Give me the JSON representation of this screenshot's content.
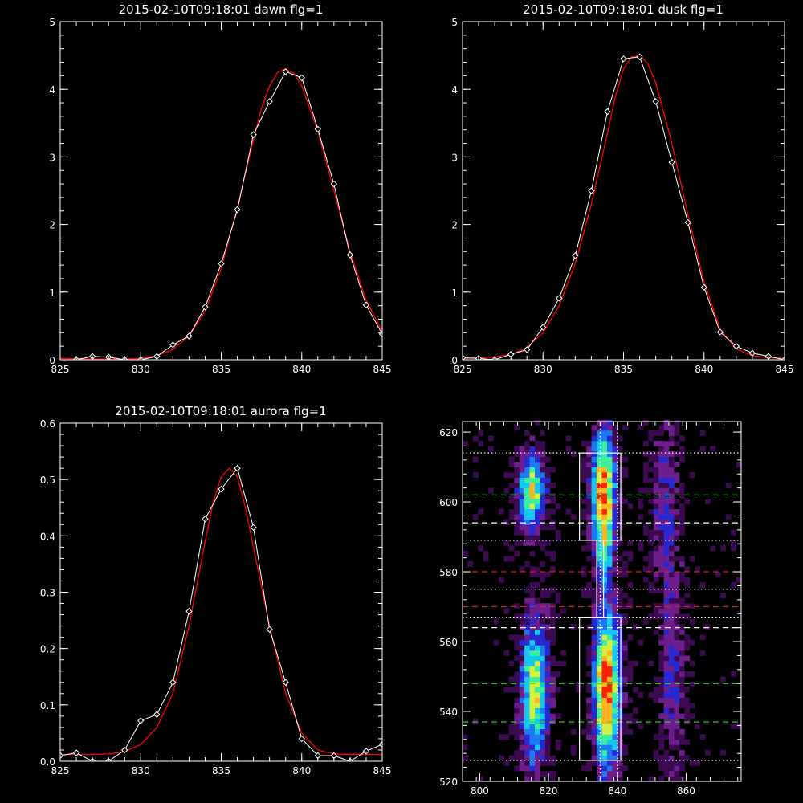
{
  "colors": {
    "background": "#000000",
    "axes": "#ffffff",
    "data": "#ffffff",
    "fit": "#ff0000"
  },
  "chart_data": [
    {
      "id": "dawn",
      "type": "line",
      "title": "2015-02-10T09:18:01 dawn flg=1",
      "xlim": [
        825,
        845
      ],
      "ylim": [
        0,
        5
      ],
      "xticks": [
        825,
        830,
        835,
        840,
        845
      ],
      "yticks": [
        0,
        1,
        2,
        3,
        4,
        5
      ],
      "series": [
        {
          "role": "data",
          "marker": "diamond",
          "x": [
            826,
            827,
            828,
            829,
            830,
            831,
            832,
            833,
            834,
            835,
            836,
            837,
            838,
            839,
            840,
            841,
            842,
            843,
            844,
            845
          ],
          "y": [
            0.0,
            0.05,
            0.04,
            0.0,
            0.0,
            0.05,
            0.22,
            0.35,
            0.78,
            1.42,
            2.22,
            3.33,
            3.82,
            4.26,
            4.17,
            3.41,
            2.6,
            1.55,
            0.81,
            0.38
          ]
        },
        {
          "role": "fit",
          "x": [
            825,
            827,
            829,
            830,
            831,
            832,
            833,
            834,
            835,
            836,
            837,
            837.5,
            838,
            838.5,
            839,
            839.5,
            840,
            841,
            842,
            843,
            844,
            845
          ],
          "y": [
            0.02,
            0.01,
            0.01,
            0.02,
            0.06,
            0.15,
            0.35,
            0.72,
            1.35,
            2.25,
            3.25,
            3.72,
            4.05,
            4.25,
            4.3,
            4.24,
            4.05,
            3.38,
            2.5,
            1.6,
            0.88,
            0.42
          ]
        }
      ]
    },
    {
      "id": "dusk",
      "type": "line",
      "title": "2015-02-10T09:18:01 dusk flg=1",
      "xlim": [
        825,
        845
      ],
      "ylim": [
        0,
        5
      ],
      "xticks": [
        825,
        830,
        835,
        840,
        845
      ],
      "yticks": [
        0,
        1,
        2,
        3,
        4,
        5
      ],
      "series": [
        {
          "role": "data",
          "marker": "diamond",
          "x": [
            825,
            826,
            827,
            828,
            829,
            830,
            831,
            832,
            833,
            834,
            835,
            836,
            837,
            838,
            839,
            840,
            841,
            842,
            843,
            844,
            845
          ],
          "y": [
            0.03,
            0.02,
            0.0,
            0.08,
            0.15,
            0.48,
            0.91,
            1.54,
            2.5,
            3.67,
            4.45,
            4.48,
            3.82,
            2.92,
            2.03,
            1.07,
            0.41,
            0.2,
            0.1,
            0.05,
            0.0
          ]
        },
        {
          "role": "fit",
          "x": [
            825,
            827,
            828,
            829,
            830,
            831,
            832,
            833,
            834,
            834.5,
            835,
            835.5,
            836,
            836.5,
            837,
            838,
            839,
            840,
            841,
            842,
            843,
            844,
            845
          ],
          "y": [
            0.02,
            0.04,
            0.08,
            0.18,
            0.4,
            0.8,
            1.42,
            2.3,
            3.35,
            3.9,
            4.3,
            4.48,
            4.5,
            4.38,
            4.1,
            3.2,
            2.15,
            1.15,
            0.45,
            0.16,
            0.06,
            0.03,
            0.02
          ]
        }
      ]
    },
    {
      "id": "aurora",
      "type": "line",
      "title": "2015-02-10T09:18:01 aurora flg=1",
      "xlim": [
        825,
        845
      ],
      "ylim": [
        0,
        0.6
      ],
      "xticks": [
        825,
        830,
        835,
        840,
        845
      ],
      "yticks": [
        0.0,
        0.1,
        0.2,
        0.3,
        0.4,
        0.5,
        0.6
      ],
      "series": [
        {
          "role": "data",
          "marker": "diamond",
          "x": [
            825,
            826,
            827,
            828,
            829,
            830,
            831,
            832,
            833,
            834,
            835,
            836,
            837,
            838,
            839,
            840,
            841,
            842,
            843,
            844,
            845
          ],
          "y": [
            0.01,
            0.015,
            0.0,
            0.0,
            0.02,
            0.072,
            0.083,
            0.14,
            0.266,
            0.43,
            0.483,
            0.52,
            0.415,
            0.234,
            0.14,
            0.04,
            0.01,
            0.01,
            0.0,
            0.018,
            0.03
          ]
        },
        {
          "role": "fit",
          "x": [
            825,
            827,
            828,
            829,
            830,
            831,
            832,
            833,
            834,
            834.5,
            835,
            835.5,
            836,
            836.5,
            837,
            838,
            839,
            840,
            841,
            842,
            843,
            845
          ],
          "y": [
            0.012,
            0.012,
            0.013,
            0.017,
            0.03,
            0.06,
            0.12,
            0.24,
            0.39,
            0.46,
            0.505,
            0.52,
            0.505,
            0.45,
            0.38,
            0.24,
            0.12,
            0.05,
            0.02,
            0.013,
            0.012,
            0.012
          ]
        }
      ]
    },
    {
      "id": "image",
      "type": "heatmap",
      "xlim": [
        795,
        876
      ],
      "ylim": [
        520,
        623
      ],
      "xticks": [
        800,
        820,
        840,
        860
      ],
      "yticks": [
        520,
        540,
        560,
        580,
        600,
        620
      ],
      "colormap": [
        "#000000",
        "#3c0a50",
        "#6e1e8c",
        "#2828d2",
        "#1e78f0",
        "#14c8f0",
        "#3cf09b",
        "#d2f03c",
        "#ffb41e",
        "#ff1e00"
      ],
      "blobs": [
        {
          "xc": 815,
          "xw": 3,
          "yc": 603,
          "yw": 6,
          "amp": 0.75
        },
        {
          "xc": 836,
          "xw": 2.6,
          "yc": 604,
          "yw": 9,
          "amp": 0.95
        },
        {
          "xc": 816,
          "xw": 3,
          "yc": 546,
          "yw": 12,
          "amp": 0.75
        },
        {
          "xc": 837,
          "xw": 2.8,
          "yc": 547,
          "yw": 13,
          "amp": 1.0
        },
        {
          "xc": 854,
          "xw": 3,
          "yc": 600,
          "yw": 14,
          "amp": 0.3
        },
        {
          "xc": 856,
          "xw": 3,
          "yc": 548,
          "yw": 16,
          "amp": 0.3
        },
        {
          "xc": 836,
          "xw": 1.5,
          "yc": 585,
          "yw": 5,
          "amp": 0.4
        }
      ],
      "boxes": [
        {
          "x": [
            829,
            841
          ],
          "y": [
            589,
            614
          ]
        },
        {
          "x": [
            829,
            841
          ],
          "y": [
            526,
            567
          ]
        },
        {
          "x": [
            834,
            836
          ],
          "y": [
            567,
            589
          ]
        }
      ],
      "hlines": [
        {
          "y": 614,
          "style": "dotted",
          "color": "#ffffff"
        },
        {
          "y": 602,
          "style": "dashed",
          "color": "#32dc32"
        },
        {
          "y": 594,
          "style": "dashed",
          "color": "#ffffff"
        },
        {
          "y": 589,
          "style": "dotted",
          "color": "#ffffff"
        },
        {
          "y": 580,
          "style": "dashed",
          "color": "#dc1e1e"
        },
        {
          "y": 575,
          "style": "dotted",
          "color": "#ffffff"
        },
        {
          "y": 570,
          "style": "dashed",
          "color": "#dc1e1e"
        },
        {
          "y": 567,
          "style": "dotted",
          "color": "#ffffff"
        },
        {
          "y": 564,
          "style": "dashed",
          "color": "#ffffff"
        },
        {
          "y": 548,
          "style": "dashed",
          "color": "#32dc32"
        },
        {
          "y": 537,
          "style": "dashed",
          "color": "#32dc32"
        },
        {
          "y": 526,
          "style": "dotted",
          "color": "#ffffff"
        }
      ],
      "vlines": [
        {
          "x": 835,
          "style": "dotted",
          "color": "#ffffff"
        },
        {
          "x": 840,
          "style": "dotted",
          "color": "#ffffff"
        }
      ]
    }
  ]
}
